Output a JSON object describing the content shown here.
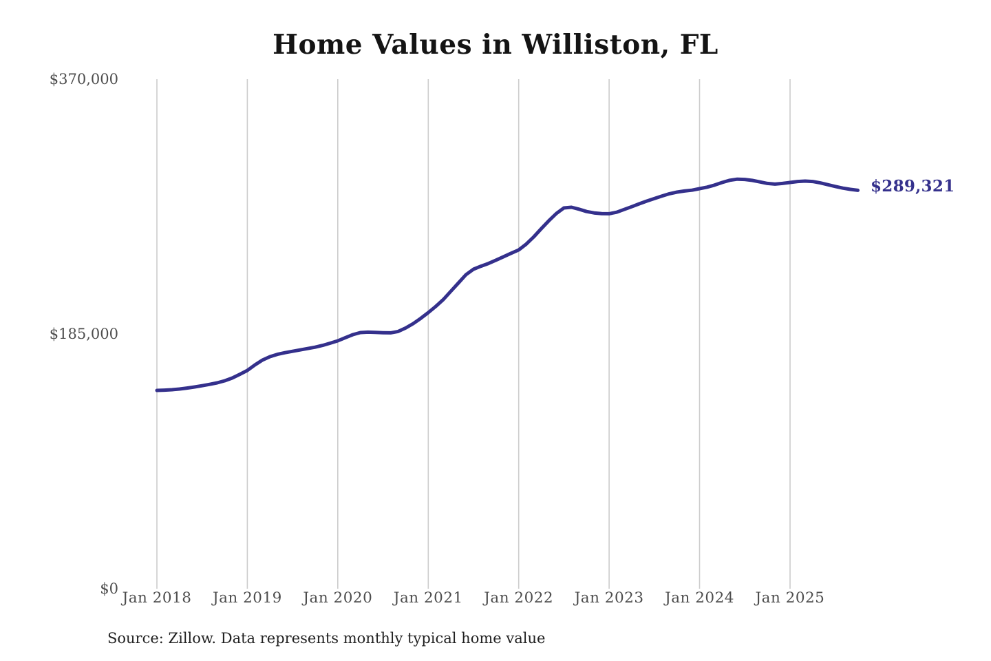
{
  "page": {
    "title": "Home Values in Williston, FL",
    "end_value_label": "$289,321",
    "source_note": "Source: Zillow. Data represents monthly typical home value"
  },
  "chart_data": {
    "type": "line",
    "title": "Home Values in Williston, FL",
    "series_name": "Monthly typical home value",
    "unit": "USD",
    "x": [
      "2018-01",
      "2018-02",
      "2018-03",
      "2018-04",
      "2018-05",
      "2018-06",
      "2018-07",
      "2018-08",
      "2018-09",
      "2018-10",
      "2018-11",
      "2018-12",
      "2019-01",
      "2019-02",
      "2019-03",
      "2019-04",
      "2019-05",
      "2019-06",
      "2019-07",
      "2019-08",
      "2019-09",
      "2019-10",
      "2019-11",
      "2019-12",
      "2020-01",
      "2020-02",
      "2020-03",
      "2020-04",
      "2020-05",
      "2020-06",
      "2020-07",
      "2020-08",
      "2020-09",
      "2020-10",
      "2020-11",
      "2020-12",
      "2021-01",
      "2021-02",
      "2021-03",
      "2021-04",
      "2021-05",
      "2021-06",
      "2021-07",
      "2021-08",
      "2021-09",
      "2021-10",
      "2021-11",
      "2021-12",
      "2022-01",
      "2022-02",
      "2022-03",
      "2022-04",
      "2022-05",
      "2022-06",
      "2022-07",
      "2022-08",
      "2022-09",
      "2022-10",
      "2022-11",
      "2022-12",
      "2023-01",
      "2023-02",
      "2023-03",
      "2023-04",
      "2023-05",
      "2023-06",
      "2023-07",
      "2023-08",
      "2023-09",
      "2023-10",
      "2023-11",
      "2023-12",
      "2024-01",
      "2024-02",
      "2024-03",
      "2024-04",
      "2024-05",
      "2024-06",
      "2024-07",
      "2024-08",
      "2024-09",
      "2024-10",
      "2024-11",
      "2024-12",
      "2025-01",
      "2025-02",
      "2025-03",
      "2025-04",
      "2025-05",
      "2025-06",
      "2025-07",
      "2025-08",
      "2025-09",
      "2025-10"
    ],
    "values": [
      144000,
      144200,
      144500,
      145000,
      145700,
      146500,
      147400,
      148400,
      149500,
      151000,
      153000,
      155700,
      158500,
      162500,
      166000,
      168500,
      170200,
      171400,
      172400,
      173400,
      174400,
      175400,
      176700,
      178300,
      180000,
      182300,
      184500,
      186000,
      186300,
      186100,
      185900,
      185800,
      186800,
      189300,
      192500,
      196300,
      200500,
      205000,
      210000,
      216000,
      222000,
      228000,
      232000,
      234200,
      236200,
      238600,
      241100,
      243600,
      246000,
      250200,
      255500,
      261500,
      267200,
      272500,
      276500,
      277000,
      275600,
      273900,
      272900,
      272400,
      272300,
      273400,
      275400,
      277400,
      279500,
      281500,
      283300,
      285100,
      286800,
      288000,
      288800,
      289400,
      290500,
      291600,
      293100,
      295000,
      296600,
      297400,
      297200,
      296500,
      295400,
      294300,
      293800,
      294300,
      295000,
      295700,
      296000,
      295700,
      294700,
      293400,
      292100,
      290900,
      290000,
      289321
    ],
    "x_tick_labels": [
      "Jan 2018",
      "Jan 2019",
      "Jan 2020",
      "Jan 2021",
      "Jan 2022",
      "Jan 2023",
      "Jan 2024",
      "Jan 2025"
    ],
    "x_tick_month_indices": [
      0,
      12,
      24,
      36,
      48,
      60,
      72,
      84
    ],
    "y_tick_values": [
      370000,
      185000,
      0
    ],
    "y_tick_labels": [
      "$370,000",
      "$185,000",
      "$0"
    ],
    "ylim": [
      0,
      370000
    ],
    "grid": "vertical-only",
    "legend": "none",
    "line_color": "#34308c",
    "gridline_color": "#cccccc",
    "annotation": {
      "text": "$289,321",
      "value": 289321,
      "position": "line-end"
    },
    "source": "Source: Zillow. Data represents monthly typical home value"
  }
}
